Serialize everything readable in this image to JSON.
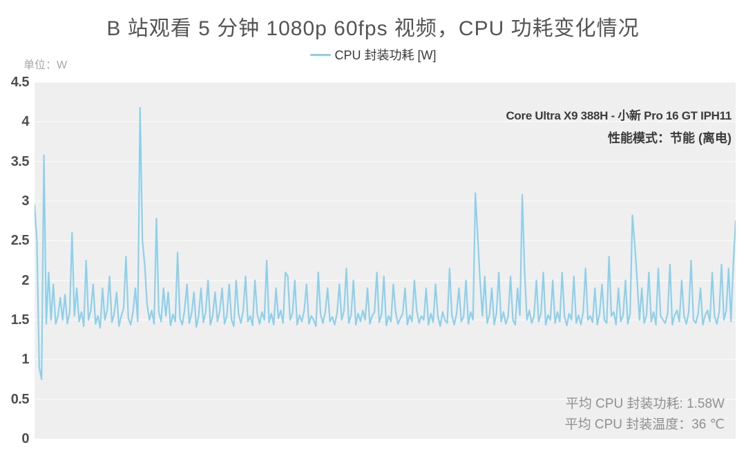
{
  "title": "B 站观看 5 分钟 1080p 60fps 视频，CPU 功耗变化情况",
  "unit_label": "单位：W",
  "legend": {
    "label": "CPU 封装功耗 [W]",
    "color": "#8ecfea"
  },
  "annotations": {
    "device": "Core Ultra X9 388H - 小新 Pro 16 GT IPH11",
    "mode": "性能模式：节能 (离电)",
    "avg_power": "平均 CPU 封装功耗: 1.58W",
    "avg_temp": "平均 CPU 封装温度：36 ℃"
  },
  "chart_data": {
    "type": "line",
    "title": "B 站观看 5 分钟 1080p 60fps 视频，CPU 功耗变化情况",
    "xlabel": "",
    "ylabel": "单位：W",
    "ylim": [
      0,
      4.5
    ],
    "yticks": [
      0,
      0.5,
      1,
      1.5,
      2,
      2.5,
      3,
      3.5,
      4,
      4.5
    ],
    "xticks": [],
    "grid": true,
    "legend_position": "top",
    "plot_bg": "#efefef",
    "grid_color": "#f9f9f9",
    "avg_power_w": 1.58,
    "avg_temp_c": 36,
    "series": [
      {
        "name": "CPU 封装功耗 [W]",
        "color": "#8ecfea",
        "values": [
          2.95,
          2.5,
          0.9,
          0.75,
          3.58,
          1.45,
          2.1,
          1.5,
          1.95,
          1.45,
          1.55,
          1.78,
          1.5,
          1.82,
          1.45,
          1.6,
          2.6,
          1.55,
          1.9,
          1.48,
          1.6,
          1.42,
          2.25,
          1.5,
          1.62,
          1.95,
          1.45,
          1.55,
          1.4,
          1.9,
          1.5,
          1.63,
          2.05,
          1.47,
          1.58,
          1.85,
          1.42,
          1.55,
          1.65,
          2.3,
          1.52,
          1.44,
          1.6,
          1.9,
          1.48,
          4.18,
          2.5,
          2.2,
          1.7,
          1.5,
          1.62,
          1.45,
          2.78,
          1.6,
          1.48,
          1.9,
          1.55,
          1.85,
          1.43,
          1.57,
          1.48,
          2.35,
          1.52,
          1.44,
          1.63,
          1.95,
          1.46,
          1.58,
          1.85,
          1.41,
          1.55,
          1.9,
          1.47,
          1.6,
          2.0,
          1.44,
          1.56,
          1.85,
          1.48,
          1.62,
          1.9,
          1.45,
          1.55,
          1.95,
          1.5,
          1.42,
          2.0,
          1.58,
          1.46,
          1.62,
          2.05,
          1.48,
          1.55,
          1.43,
          2.0,
          1.57,
          1.45,
          1.6,
          1.5,
          2.25,
          1.47,
          1.58,
          1.44,
          1.9,
          1.52,
          1.62,
          1.46,
          2.1,
          2.05,
          1.5,
          1.58,
          2.0,
          1.44,
          1.56,
          1.48,
          1.62,
          1.95,
          1.45,
          1.55,
          1.5,
          1.42,
          2.1,
          1.57,
          1.46,
          1.6,
          1.9,
          1.48,
          1.54,
          1.44,
          1.58,
          1.95,
          1.5,
          1.62,
          2.15,
          1.46,
          1.56,
          2.0,
          1.44,
          1.58,
          1.48,
          1.62,
          1.5,
          1.9,
          1.45,
          1.55,
          1.6,
          2.1,
          1.47,
          1.57,
          2.05,
          1.43,
          1.55,
          1.48,
          1.95,
          1.6,
          1.45,
          1.52,
          1.58,
          1.9,
          1.44,
          1.56,
          1.48,
          2.0,
          1.62,
          1.46,
          1.55,
          1.5,
          1.9,
          1.44,
          1.58,
          1.47,
          1.95,
          1.55,
          1.42,
          1.6,
          1.5,
          1.46,
          2.15,
          1.56,
          1.44,
          1.58,
          1.9,
          1.48,
          1.54,
          2.0,
          1.45,
          1.6,
          1.5,
          3.1,
          2.55,
          2.0,
          1.55,
          2.05,
          1.46,
          1.56,
          1.9,
          1.44,
          1.58,
          2.1,
          1.48,
          1.6,
          1.45,
          1.55,
          2.05,
          1.5,
          1.44,
          1.9,
          1.56,
          3.08,
          2.1,
          1.5,
          1.62,
          1.46,
          1.55,
          2.0,
          1.48,
          1.58,
          2.1,
          1.44,
          1.56,
          1.5,
          2.0,
          1.46,
          1.6,
          1.48,
          2.1,
          1.55,
          1.43,
          1.58,
          1.5,
          2.05,
          1.46,
          1.56,
          1.44,
          1.6,
          2.15,
          1.5,
          1.55,
          1.47,
          1.9,
          1.44,
          1.58,
          1.95,
          1.5,
          1.46,
          2.3,
          1.55,
          1.6,
          1.44,
          1.9,
          1.48,
          1.56,
          2.0,
          1.45,
          1.58,
          2.82,
          2.45,
          2.0,
          1.5,
          1.9,
          1.46,
          1.56,
          2.1,
          1.48,
          1.6,
          1.44,
          2.15,
          1.55,
          1.5,
          1.46,
          1.58,
          2.2,
          1.44,
          1.56,
          1.62,
          1.48,
          2.0,
          1.55,
          1.45,
          1.6,
          2.25,
          1.5,
          1.46,
          1.58,
          1.9,
          1.44,
          1.56,
          1.62,
          1.48,
          2.1,
          1.55,
          1.45,
          1.6,
          2.2,
          1.5,
          1.62,
          2.15,
          1.48,
          2.2,
          2.75
        ]
      }
    ]
  }
}
